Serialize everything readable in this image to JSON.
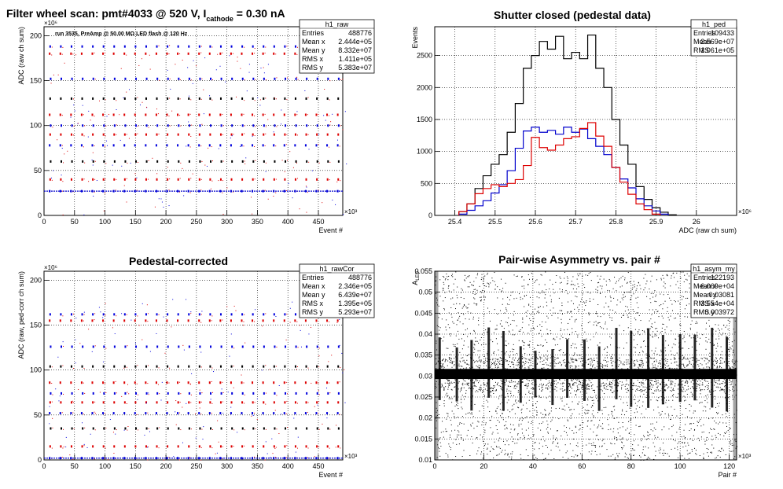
{
  "chart_data": [
    {
      "id": "h1_raw",
      "type": "scatter",
      "title_main": "Filter wheel scan: pmt#4033 @   520 V, I",
      "title_sub": "cathode",
      "title_tail": " = 0.30 nA",
      "annotation": "run 3535, PreAmp @ 50.00 MΩ LED flash @  120 Hz",
      "xlabel": "Event #",
      "ylabel": "ADC (raw ch sum)",
      "x_exponent": "×10³",
      "y_exponent": "×10⁶",
      "xlim": [
        0,
        490
      ],
      "ylim": [
        0,
        210
      ],
      "x_ticks": [
        0,
        50,
        100,
        150,
        200,
        250,
        300,
        350,
        400,
        450
      ],
      "y_ticks": [
        0,
        50,
        100,
        150,
        200
      ],
      "grid": true,
      "stats": {
        "name": "h1_raw",
        "rows": [
          [
            "Entries",
            "488776"
          ],
          [
            "Mean x",
            "2.444e+05"
          ],
          [
            "Mean y",
            "8.332e+07"
          ],
          [
            "RMS x",
            "1.411e+05"
          ],
          [
            "RMS y",
            "5.383e+07"
          ]
        ]
      },
      "levels": [
        27,
        40,
        60,
        78,
        90,
        100,
        112,
        130,
        152,
        180,
        188
      ],
      "period": 17.5,
      "x_start": 8
    },
    {
      "id": "h1_ped",
      "type": "line",
      "title": "Shutter closed (pedestal data)",
      "xlabel": "ADC (raw ch sum)",
      "ylabel": "Events",
      "x_exponent": "×10⁶",
      "xlim": [
        25.35,
        26.1
      ],
      "ylim": [
        0,
        2950
      ],
      "x_ticks": [
        25.4,
        25.5,
        25.6,
        25.7,
        25.8,
        25.9,
        26.0
      ],
      "x_tick_labels": [
        "25.4",
        "25.5",
        "25.6",
        "25.7",
        "25.8",
        "25.9",
        "26"
      ],
      "y_ticks": [
        0,
        500,
        1000,
        1500,
        2000,
        2500
      ],
      "grid": true,
      "stats": {
        "name": "h1_ped",
        "rows": [
          [
            "Entries",
            "109433"
          ],
          [
            "Mean",
            "2.569e+07"
          ],
          [
            "RMS",
            "1.061e+05"
          ]
        ]
      },
      "series": [
        {
          "color": "#000000",
          "x": [
            25.42,
            25.44,
            25.46,
            25.48,
            25.5,
            25.52,
            25.54,
            25.56,
            25.58,
            25.6,
            25.62,
            25.64,
            25.66,
            25.68,
            25.7,
            25.72,
            25.74,
            25.76,
            25.78,
            25.8,
            25.82,
            25.84,
            25.86,
            25.88,
            25.9,
            25.92,
            25.94
          ],
          "values": [
            60,
            180,
            420,
            620,
            800,
            950,
            1300,
            1750,
            2300,
            2500,
            2720,
            2600,
            2800,
            2450,
            2550,
            2450,
            2820,
            2300,
            2000,
            1500,
            1100,
            800,
            450,
            250,
            120,
            50,
            10
          ]
        },
        {
          "color": "#0000cc",
          "x": [
            25.42,
            25.44,
            25.46,
            25.48,
            25.5,
            25.52,
            25.54,
            25.56,
            25.58,
            25.6,
            25.62,
            25.64,
            25.66,
            25.68,
            25.7,
            25.72,
            25.74,
            25.76,
            25.78,
            25.8,
            25.82,
            25.84,
            25.86,
            25.88,
            25.9,
            25.92
          ],
          "values": [
            20,
            80,
            150,
            230,
            350,
            480,
            700,
            1050,
            1320,
            1380,
            1300,
            1330,
            1270,
            1380,
            1300,
            1350,
            1200,
            1080,
            950,
            750,
            570,
            430,
            260,
            150,
            70,
            20
          ]
        },
        {
          "color": "#dd0000",
          "x": [
            25.42,
            25.44,
            25.46,
            25.48,
            25.5,
            25.52,
            25.54,
            25.56,
            25.58,
            25.6,
            25.62,
            25.64,
            25.66,
            25.68,
            25.7,
            25.72,
            25.74,
            25.76,
            25.78,
            25.8,
            25.82,
            25.84,
            25.86,
            25.88,
            25.9
          ],
          "values": [
            60,
            180,
            340,
            420,
            480,
            450,
            500,
            560,
            780,
            1220,
            1060,
            1020,
            1100,
            1200,
            1230,
            1360,
            1450,
            1240,
            1080,
            750,
            520,
            330,
            180,
            90,
            20
          ]
        }
      ]
    },
    {
      "id": "h1_rawCor",
      "type": "scatter",
      "title": "Pedestal-corrected",
      "xlabel": "Event #",
      "ylabel": "ADC (raw, ped-corr ch sum)",
      "x_exponent": "×10³",
      "y_exponent": "×10⁶",
      "xlim": [
        0,
        490
      ],
      "ylim": [
        0,
        210
      ],
      "x_ticks": [
        0,
        50,
        100,
        150,
        200,
        250,
        300,
        350,
        400,
        450
      ],
      "y_ticks": [
        0,
        50,
        100,
        150,
        200
      ],
      "grid": true,
      "stats": {
        "name": "h1_rawCor",
        "rows": [
          [
            "Entries",
            "488776"
          ],
          [
            "Mean x",
            "2.346e+05"
          ],
          [
            "Mean y",
            "6.439e+07"
          ],
          [
            "RMS x",
            "1.395e+05"
          ],
          [
            "RMS y",
            "5.293e+07"
          ]
        ]
      },
      "levels": [
        2,
        15,
        35,
        52,
        64,
        74,
        86,
        104,
        126,
        155,
        162
      ],
      "period": 17.5,
      "x_start": 8
    },
    {
      "id": "h1_asym_my",
      "type": "scatter",
      "title": "Pair-wise Asymmetry vs. pair #",
      "xlabel": "Pair #",
      "ylabel": "A_LED",
      "x_exponent": "×10³",
      "xlim": [
        0,
        123
      ],
      "ylim": [
        0.01,
        0.055
      ],
      "x_ticks": [
        0,
        20,
        40,
        60,
        80,
        100,
        120
      ],
      "y_ticks": [
        0.01,
        0.015,
        0.02,
        0.025,
        0.03,
        0.035,
        0.04,
        0.045,
        0.05,
        0.055
      ],
      "grid": true,
      "stats": {
        "name": "h1_asym_my",
        "rows": [
          [
            "Entries",
            "122193"
          ],
          [
            "Mean x",
            "6.069e+04"
          ],
          [
            "Mean y",
            "0.03081"
          ],
          [
            "RMS x",
            "3.554e+04"
          ],
          [
            "RMS y",
            "0.003972"
          ]
        ]
      },
      "band_center": 0.0305,
      "spikes": [
        2,
        9,
        15,
        22,
        28,
        35,
        41,
        48,
        54,
        61,
        67,
        74,
        80,
        87,
        93,
        100,
        106,
        113,
        119
      ]
    }
  ]
}
